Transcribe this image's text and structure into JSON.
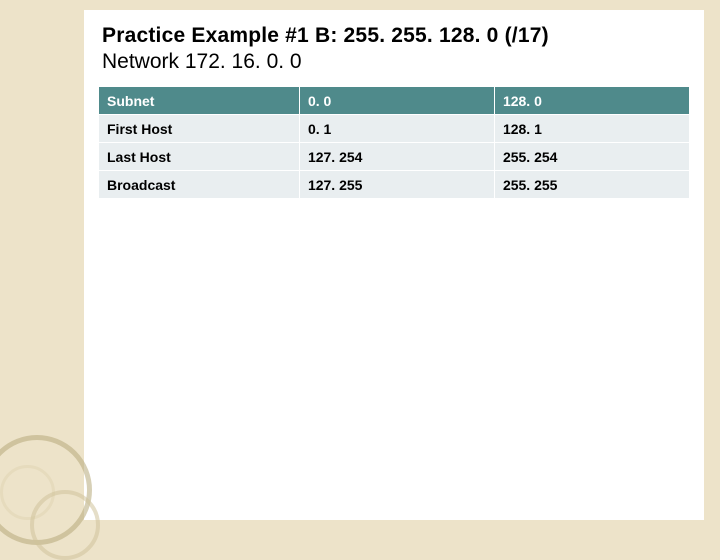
{
  "title": {
    "line1": "Practice Example #1 B: 255. 255. 128. 0 (/17)",
    "line2": "Network 172. 16. 0. 0"
  },
  "table": {
    "type": "table",
    "header_bg": "#4f8a8b",
    "header_fg": "#ffffff",
    "row_bg": "#e9eef0",
    "row_fg": "#000000",
    "border_color": "#ffffff",
    "font_size": 14,
    "columns": [
      "Subnet",
      "0. 0",
      "128. 0"
    ],
    "rows": [
      [
        "First Host",
        "0. 1",
        "128. 1"
      ],
      [
        "Last Host",
        "127. 254",
        "255. 254"
      ],
      [
        "Broadcast",
        "127. 255",
        "255. 255"
      ]
    ],
    "col_widths_pct": [
      34,
      33,
      33
    ]
  },
  "background_color": "#ede3c9",
  "slide_bg": "#ffffff"
}
